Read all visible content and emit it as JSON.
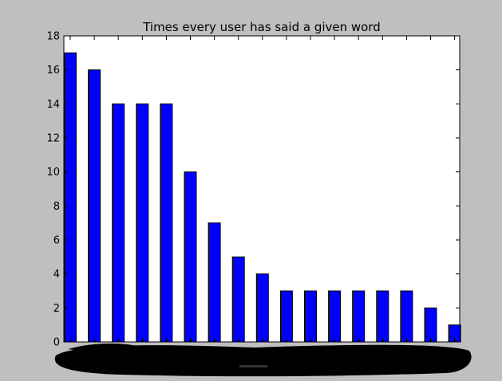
{
  "chart_data": {
    "type": "bar",
    "title": "Times every user has said a given word",
    "xlabel": "",
    "ylabel": "",
    "ylim": [
      0,
      18
    ],
    "yticks": [
      0,
      2,
      4,
      6,
      8,
      10,
      12,
      14,
      16,
      18
    ],
    "values": [
      17,
      16,
      14,
      14,
      14,
      10,
      7,
      5,
      4,
      3,
      3,
      3,
      3,
      3,
      3,
      2,
      1
    ],
    "bar_color": "#0000ff",
    "background_color": "#bfbfbf",
    "plot_background": "#ffffff",
    "grid": false,
    "legend": "none",
    "note": "x-axis category labels obscured by black scribble"
  }
}
